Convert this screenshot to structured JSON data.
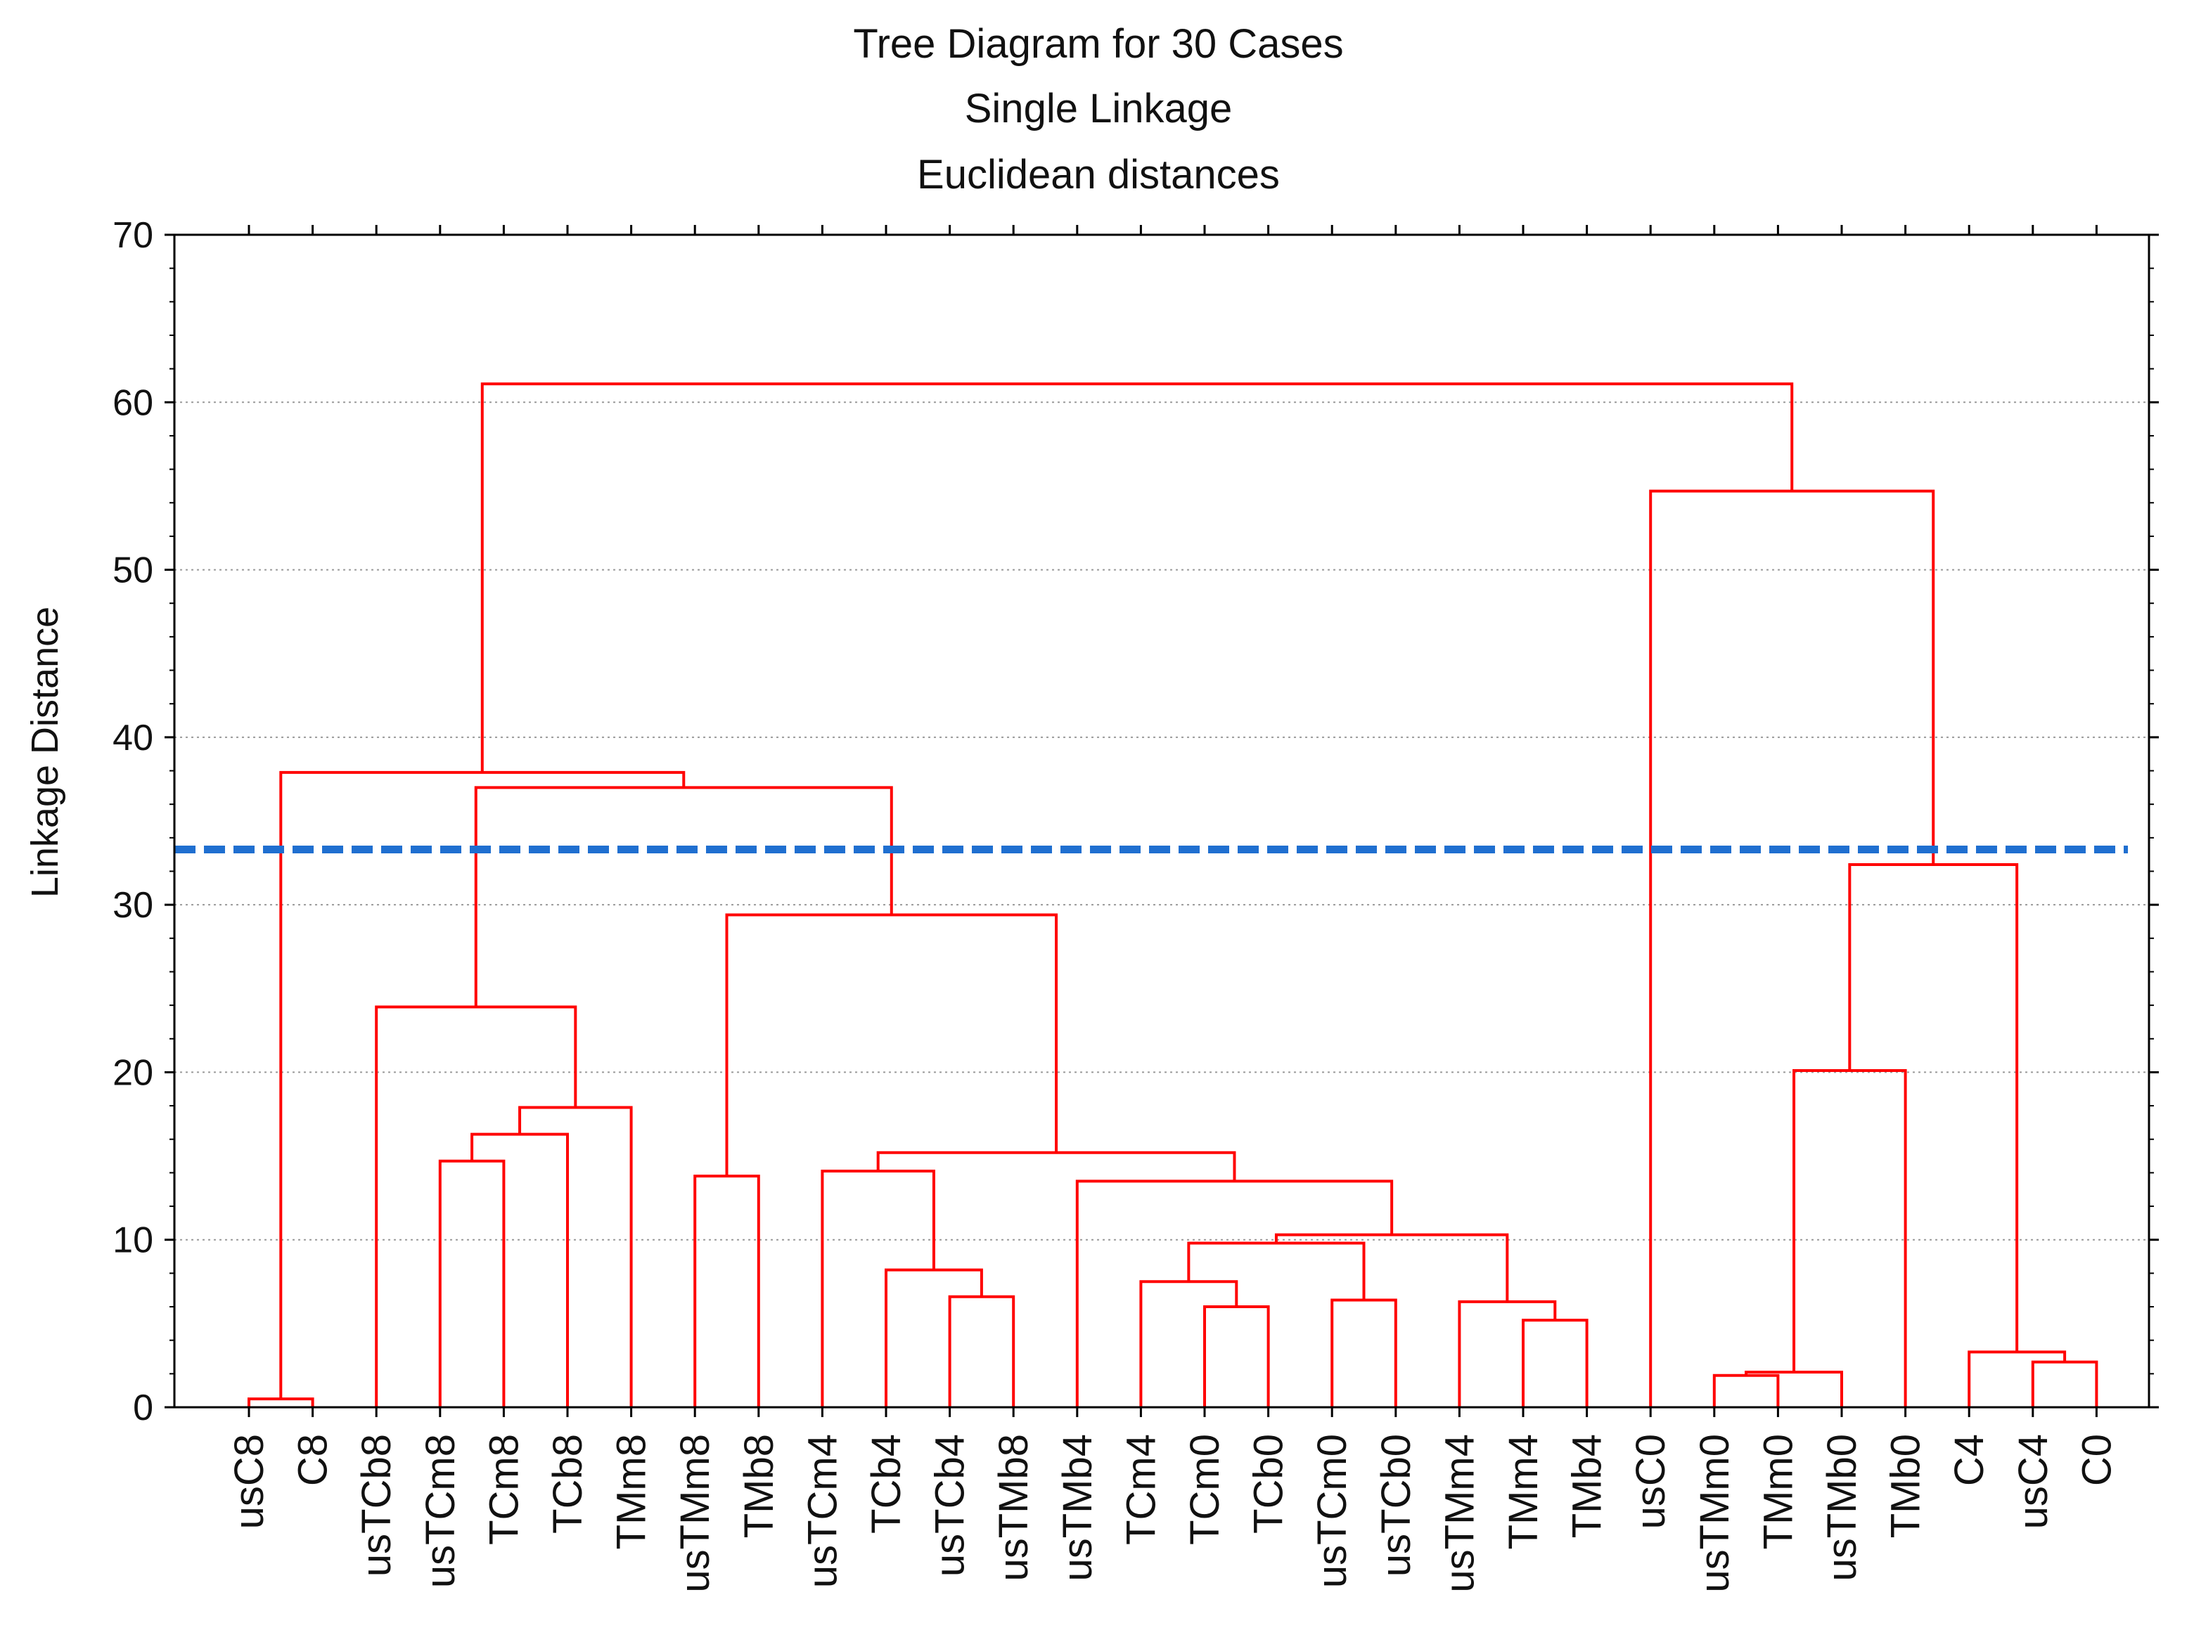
{
  "chart_data": {
    "type": "dendrogram",
    "title_lines": [
      "Tree Diagram for 30 Cases",
      "Single Linkage",
      "Euclidean distances"
    ],
    "ylabel": "Linkage Distance",
    "ylim": [
      0,
      70
    ],
    "yticks": [
      0,
      10,
      20,
      30,
      40,
      50,
      60,
      70
    ],
    "grid": true,
    "leaves": [
      "usC8",
      "C8",
      "usTCb8",
      "usTCm8",
      "TCm8",
      "TCb8",
      "TMm8",
      "usTMm8",
      "TMb8",
      "usTCm4",
      "TCb4",
      "usTCb4",
      "usTMb8",
      "usTMb4",
      "TCm4",
      "TCm0",
      "TCb0",
      "usTCm0",
      "usTCb0",
      "usTMm4",
      "TMm4",
      "TMb4",
      "usC0",
      "usTMm0",
      "TMm0",
      "usTMb0",
      "TMb0",
      "C4",
      "usC4",
      "C0"
    ],
    "merges": [
      {
        "a": "L0",
        "b": "L1",
        "height": 0.5
      },
      {
        "a": "L3",
        "b": "L4",
        "height": 14.7
      },
      {
        "a": "M1",
        "b": "L5",
        "height": 16.3
      },
      {
        "a": "M2",
        "b": "L6",
        "height": 17.9
      },
      {
        "a": "L2",
        "b": "M3",
        "height": 23.9
      },
      {
        "a": "L7",
        "b": "L8",
        "height": 13.8
      },
      {
        "a": "L11",
        "b": "L12",
        "height": 6.6
      },
      {
        "a": "L10",
        "b": "M6",
        "height": 8.2
      },
      {
        "a": "L9",
        "b": "M7",
        "height": 14.1
      },
      {
        "a": "L15",
        "b": "L16",
        "height": 6.0
      },
      {
        "a": "L14",
        "b": "M9",
        "height": 7.5
      },
      {
        "a": "L17",
        "b": "L18",
        "height": 6.4
      },
      {
        "a": "M10",
        "b": "M11",
        "height": 9.8
      },
      {
        "a": "L20",
        "b": "L21",
        "height": 5.2
      },
      {
        "a": "L19",
        "b": "M13",
        "height": 6.3
      },
      {
        "a": "M12",
        "b": "M14",
        "height": 10.3
      },
      {
        "a": "L13",
        "b": "M15",
        "height": 13.5
      },
      {
        "a": "M8",
        "b": "M16",
        "height": 15.2
      },
      {
        "a": "M5",
        "b": "M17",
        "height": 29.4
      },
      {
        "a": "M4",
        "b": "M18",
        "height": 37.0
      },
      {
        "a": "M0",
        "b": "M19",
        "height": 37.9
      },
      {
        "a": "L23",
        "b": "L24",
        "height": 1.9
      },
      {
        "a": "M21",
        "b": "L25",
        "height": 2.1
      },
      {
        "a": "M22",
        "b": "L26",
        "height": 20.1
      },
      {
        "a": "L28",
        "b": "L29",
        "height": 2.7
      },
      {
        "a": "L27",
        "b": "M24",
        "height": 3.3
      },
      {
        "a": "M23",
        "b": "M25",
        "height": 32.4
      },
      {
        "a": "L22",
        "b": "M26",
        "height": 54.7
      },
      {
        "a": "M20",
        "b": "M27",
        "height": 61.1
      }
    ],
    "cut_line": {
      "y": 33.3,
      "color": "#1f6fd0",
      "style": "dashed"
    },
    "colors": {
      "branch": "#ff0000",
      "grid": "#9a9a9a",
      "axis": "#000000"
    }
  }
}
